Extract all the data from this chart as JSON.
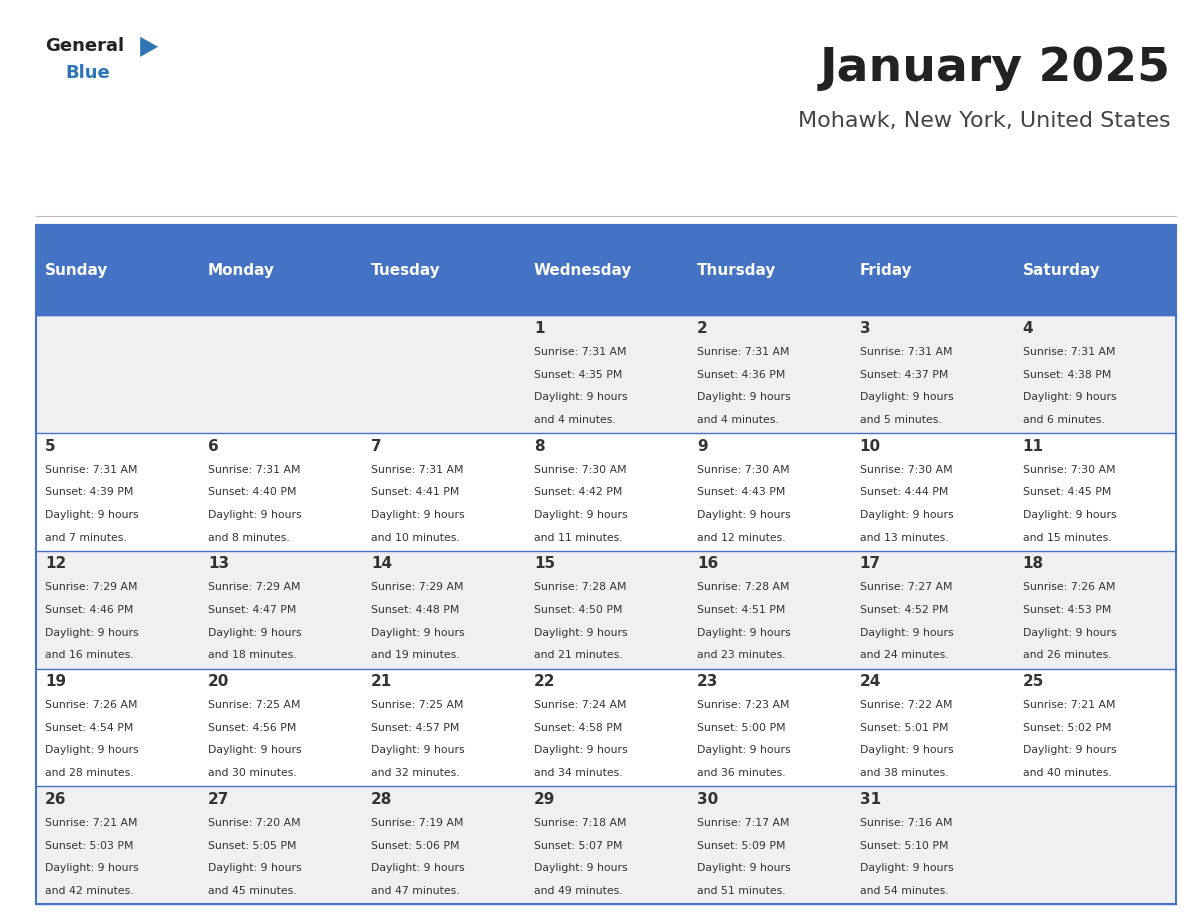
{
  "title": "January 2025",
  "subtitle": "Mohawk, New York, United States",
  "days_of_week": [
    "Sunday",
    "Monday",
    "Tuesday",
    "Wednesday",
    "Thursday",
    "Friday",
    "Saturday"
  ],
  "header_bg": "#4472C4",
  "header_text": "#FFFFFF",
  "cell_bg_odd": "#F0F0F0",
  "cell_bg_even": "#FFFFFF",
  "cell_text": "#333333",
  "grid_line_color": "#4472C4",
  "title_color": "#222222",
  "subtitle_color": "#444444",
  "logo_general_color": "#222222",
  "logo_blue_color": "#2E75B6",
  "calendar_data": [
    [
      {
        "day": "",
        "sunrise": "",
        "sunset": "",
        "daylight": ""
      },
      {
        "day": "",
        "sunrise": "",
        "sunset": "",
        "daylight": ""
      },
      {
        "day": "",
        "sunrise": "",
        "sunset": "",
        "daylight": ""
      },
      {
        "day": "1",
        "sunrise": "7:31 AM",
        "sunset": "4:35 PM",
        "daylight": "9 hours and 4 minutes."
      },
      {
        "day": "2",
        "sunrise": "7:31 AM",
        "sunset": "4:36 PM",
        "daylight": "9 hours and 4 minutes."
      },
      {
        "day": "3",
        "sunrise": "7:31 AM",
        "sunset": "4:37 PM",
        "daylight": "9 hours and 5 minutes."
      },
      {
        "day": "4",
        "sunrise": "7:31 AM",
        "sunset": "4:38 PM",
        "daylight": "9 hours and 6 minutes."
      }
    ],
    [
      {
        "day": "5",
        "sunrise": "7:31 AM",
        "sunset": "4:39 PM",
        "daylight": "9 hours and 7 minutes."
      },
      {
        "day": "6",
        "sunrise": "7:31 AM",
        "sunset": "4:40 PM",
        "daylight": "9 hours and 8 minutes."
      },
      {
        "day": "7",
        "sunrise": "7:31 AM",
        "sunset": "4:41 PM",
        "daylight": "9 hours and 10 minutes."
      },
      {
        "day": "8",
        "sunrise": "7:30 AM",
        "sunset": "4:42 PM",
        "daylight": "9 hours and 11 minutes."
      },
      {
        "day": "9",
        "sunrise": "7:30 AM",
        "sunset": "4:43 PM",
        "daylight": "9 hours and 12 minutes."
      },
      {
        "day": "10",
        "sunrise": "7:30 AM",
        "sunset": "4:44 PM",
        "daylight": "9 hours and 13 minutes."
      },
      {
        "day": "11",
        "sunrise": "7:30 AM",
        "sunset": "4:45 PM",
        "daylight": "9 hours and 15 minutes."
      }
    ],
    [
      {
        "day": "12",
        "sunrise": "7:29 AM",
        "sunset": "4:46 PM",
        "daylight": "9 hours and 16 minutes."
      },
      {
        "day": "13",
        "sunrise": "7:29 AM",
        "sunset": "4:47 PM",
        "daylight": "9 hours and 18 minutes."
      },
      {
        "day": "14",
        "sunrise": "7:29 AM",
        "sunset": "4:48 PM",
        "daylight": "9 hours and 19 minutes."
      },
      {
        "day": "15",
        "sunrise": "7:28 AM",
        "sunset": "4:50 PM",
        "daylight": "9 hours and 21 minutes."
      },
      {
        "day": "16",
        "sunrise": "7:28 AM",
        "sunset": "4:51 PM",
        "daylight": "9 hours and 23 minutes."
      },
      {
        "day": "17",
        "sunrise": "7:27 AM",
        "sunset": "4:52 PM",
        "daylight": "9 hours and 24 minutes."
      },
      {
        "day": "18",
        "sunrise": "7:26 AM",
        "sunset": "4:53 PM",
        "daylight": "9 hours and 26 minutes."
      }
    ],
    [
      {
        "day": "19",
        "sunrise": "7:26 AM",
        "sunset": "4:54 PM",
        "daylight": "9 hours and 28 minutes."
      },
      {
        "day": "20",
        "sunrise": "7:25 AM",
        "sunset": "4:56 PM",
        "daylight": "9 hours and 30 minutes."
      },
      {
        "day": "21",
        "sunrise": "7:25 AM",
        "sunset": "4:57 PM",
        "daylight": "9 hours and 32 minutes."
      },
      {
        "day": "22",
        "sunrise": "7:24 AM",
        "sunset": "4:58 PM",
        "daylight": "9 hours and 34 minutes."
      },
      {
        "day": "23",
        "sunrise": "7:23 AM",
        "sunset": "5:00 PM",
        "daylight": "9 hours and 36 minutes."
      },
      {
        "day": "24",
        "sunrise": "7:22 AM",
        "sunset": "5:01 PM",
        "daylight": "9 hours and 38 minutes."
      },
      {
        "day": "25",
        "sunrise": "7:21 AM",
        "sunset": "5:02 PM",
        "daylight": "9 hours and 40 minutes."
      }
    ],
    [
      {
        "day": "26",
        "sunrise": "7:21 AM",
        "sunset": "5:03 PM",
        "daylight": "9 hours and 42 minutes."
      },
      {
        "day": "27",
        "sunrise": "7:20 AM",
        "sunset": "5:05 PM",
        "daylight": "9 hours and 45 minutes."
      },
      {
        "day": "28",
        "sunrise": "7:19 AM",
        "sunset": "5:06 PM",
        "daylight": "9 hours and 47 minutes."
      },
      {
        "day": "29",
        "sunrise": "7:18 AM",
        "sunset": "5:07 PM",
        "daylight": "9 hours and 49 minutes."
      },
      {
        "day": "30",
        "sunrise": "7:17 AM",
        "sunset": "5:09 PM",
        "daylight": "9 hours and 51 minutes."
      },
      {
        "day": "31",
        "sunrise": "7:16 AM",
        "sunset": "5:10 PM",
        "daylight": "9 hours and 54 minutes."
      },
      {
        "day": "",
        "sunrise": "",
        "sunset": "",
        "daylight": ""
      }
    ]
  ]
}
